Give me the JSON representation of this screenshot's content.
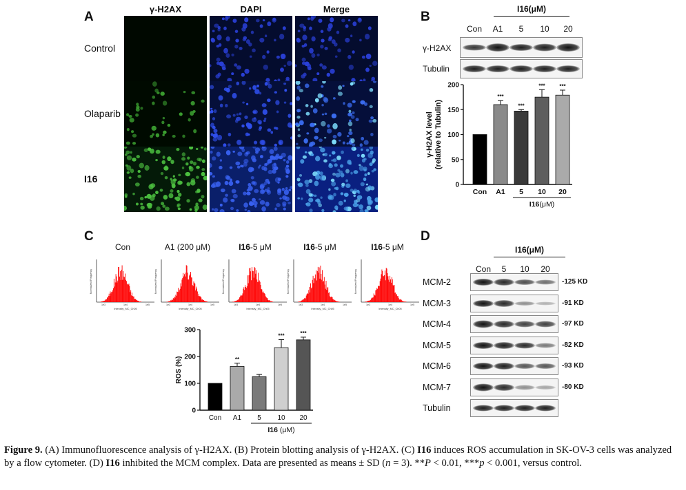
{
  "panel_a": {
    "letter": "A",
    "columns": [
      "γ-H2AX",
      "DAPI",
      "Merge"
    ],
    "rows": [
      "Control",
      "Olaparib",
      "I16"
    ]
  },
  "panel_b": {
    "letter": "B",
    "group_label": "I16(μM)",
    "lanes": [
      "Con",
      "A1",
      "5",
      "10",
      "20"
    ],
    "blots": [
      "γ-H2AX",
      "Tubulin"
    ]
  },
  "panel_c": {
    "letter": "C",
    "histograms": [
      {
        "title": "Con",
        "bold": ""
      },
      {
        "title": "A1 (200 μM)",
        "bold": ""
      },
      {
        "title": "-5 μM",
        "bold": "I16"
      },
      {
        "title": "-5 μM",
        "bold": "I16"
      },
      {
        "title": "-5 μM",
        "bold": "I16"
      }
    ],
    "hist_axis": {
      "ylabel": "Normalized Frequency",
      "xlabel": "Intensity_MC_Ch05",
      "xticks": [
        "1e3",
        "1e4",
        "1e5"
      ]
    }
  },
  "panel_d": {
    "letter": "D",
    "group_label": "I16(μM)",
    "lanes": [
      "Con",
      "5",
      "10",
      "20"
    ],
    "blots": [
      {
        "name": "MCM-2",
        "kd": "-125 KD"
      },
      {
        "name": "MCM-3",
        "kd": "-91 KD"
      },
      {
        "name": "MCM-4",
        "kd": "-97 KD"
      },
      {
        "name": "MCM-5",
        "kd": "-82 KD"
      },
      {
        "name": "MCM-6",
        "kd": "-93 KD"
      },
      {
        "name": "MCM-7",
        "kd": "-80 KD"
      },
      {
        "name": "Tubulin",
        "kd": ""
      }
    ]
  },
  "chart_data": [
    {
      "id": "B",
      "type": "bar",
      "categories": [
        "Con",
        "A1",
        "5",
        "10",
        "20"
      ],
      "values": [
        100,
        160,
        147,
        175,
        179
      ],
      "errors": [
        0,
        8,
        3,
        15,
        10
      ],
      "significance": [
        "",
        "***",
        "***",
        "***",
        "***"
      ],
      "colors": [
        "#000000",
        "#8a8a8a",
        "#3a3a3a",
        "#5e5e5e",
        "#aaaaaa"
      ],
      "ylabel": "γ-H2AX level (relative to Tubulin)",
      "ylabel_line1": "γ-H2AX level",
      "ylabel_line2": "(relative to Tubulin)",
      "yticks": [
        0,
        50,
        100,
        150,
        200
      ],
      "ylim": [
        0,
        200
      ],
      "group_label": "I16",
      "group_unit": "(μM)"
    },
    {
      "id": "C",
      "type": "bar",
      "categories": [
        "Con",
        "A1",
        "5",
        "10",
        "20"
      ],
      "values": [
        100,
        163,
        125,
        233,
        262
      ],
      "errors": [
        0,
        12,
        8,
        30,
        10
      ],
      "significance": [
        "",
        "**",
        "",
        "***",
        "***"
      ],
      "colors": [
        "#000000",
        "#aaaaaa",
        "#7a7a7a",
        "#cfcfcf",
        "#555555"
      ],
      "ylabel": "ROS (%)",
      "yticks": [
        0,
        100,
        200,
        300
      ],
      "ylim": [
        0,
        300
      ],
      "group_label": "I16",
      "group_unit": " (μM)"
    }
  ],
  "caption": {
    "fig_label": "Figure 9.",
    "text_a": " (A) Immunofluorescence analysis of γ-H2AX. (B) Protein blotting analysis of γ-H2AX. (C) ",
    "bold1": "I16",
    "text_b": " induces ROS accumulation in SK-OV-3 cells was analyzed by a flow cytometer. (D) ",
    "bold2": "I16",
    "text_c": " inhibited the MCM complex. Data are presented as means ± SD (",
    "n_var": "n",
    "text_d": " = 3). **",
    "p1": "P",
    "text_e": " < 0.01, ***",
    "p2": "p",
    "text_f": " < 0.001, versus control."
  }
}
